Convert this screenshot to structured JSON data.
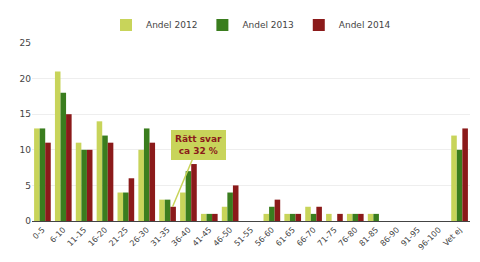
{
  "chart_data": {
    "type": "bar",
    "categories": [
      "0-5",
      "6-10",
      "11-15",
      "16-20",
      "21-25",
      "26-30",
      "31-35",
      "36-40",
      "41-45",
      "46-50",
      "51-55",
      "56-60",
      "61-65",
      "66-70",
      "71-75",
      "76-80",
      "81-85",
      "86-90",
      "91-95",
      "96-100",
      "Vet ej"
    ],
    "series": [
      {
        "name": "Andel 2012",
        "color": "#c8d45a",
        "values": [
          13,
          21,
          11,
          14,
          4,
          10,
          3,
          4,
          1,
          2,
          0,
          1,
          1,
          2,
          1,
          1,
          1,
          0,
          0,
          0,
          12
        ]
      },
      {
        "name": "Andel 2013",
        "color": "#3a7d1e",
        "values": [
          13,
          18,
          10,
          12,
          4,
          13,
          3,
          7,
          1,
          4,
          0,
          2,
          1,
          1,
          0,
          1,
          1,
          0,
          0,
          0,
          10
        ]
      },
      {
        "name": "Andel 2014",
        "color": "#8b1a1a",
        "values": [
          11,
          15,
          10,
          11,
          6,
          11,
          2,
          8,
          1,
          5,
          0,
          3,
          1,
          2,
          1,
          1,
          0,
          0,
          0,
          0,
          13
        ]
      }
    ],
    "ylim": [
      0,
      25
    ],
    "yticks": [
      0,
      5,
      10,
      15,
      20,
      25
    ],
    "grid": true,
    "legend": "top",
    "annotations": [
      {
        "text": "Rätt svar\nca 32 %",
        "x": "31-35",
        "y": 2
      }
    ]
  }
}
